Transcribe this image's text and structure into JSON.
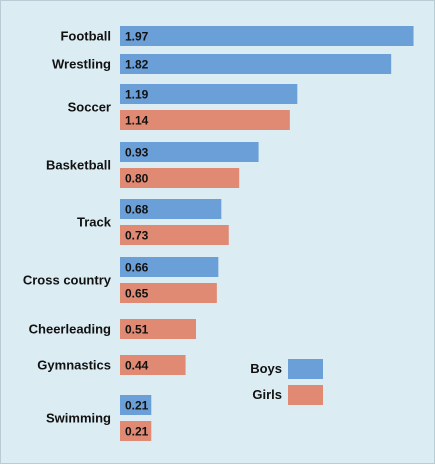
{
  "chart_data": {
    "type": "bar",
    "orientation": "horizontal",
    "categories": [
      "Football",
      "Wrestling",
      "Soccer",
      "Basketball",
      "Track",
      "Cross country",
      "Cheerleading",
      "Gymnastics",
      "Swimming"
    ],
    "series": [
      {
        "name": "Boys",
        "color": "#6a9fd8",
        "values": [
          1.97,
          1.82,
          1.19,
          0.93,
          0.68,
          0.66,
          null,
          null,
          0.21
        ],
        "labels": [
          "1.97",
          "1.82",
          "1.19",
          "0.93",
          "0.68",
          "0.66",
          null,
          null,
          "0.21"
        ]
      },
      {
        "name": "Girls",
        "color": "#e08a73",
        "values": [
          null,
          null,
          1.14,
          0.8,
          0.73,
          0.65,
          0.51,
          0.44,
          0.21
        ],
        "labels": [
          null,
          null,
          "1.14",
          "0.80",
          "0.73",
          "0.65",
          "0.51",
          "0.44",
          "0.21"
        ]
      }
    ],
    "xlim": [
      0,
      2.0
    ],
    "grid": false,
    "legend": "bottom-right",
    "background": "#dbecf3"
  }
}
